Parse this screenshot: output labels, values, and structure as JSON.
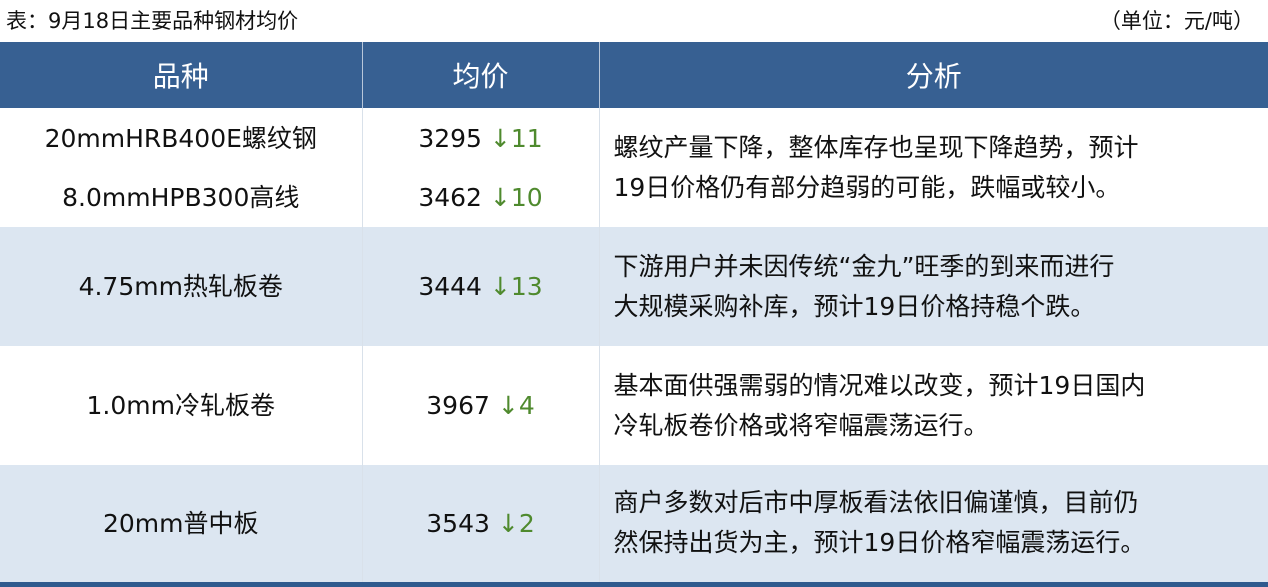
{
  "caption": "表：9月18日主要品种钢材均价",
  "unit": "（单位：元/吨）",
  "columns": [
    "品种",
    "均价",
    "分析"
  ],
  "colors": {
    "header_bg": "#376092",
    "alt_row_bg": "#dce6f1",
    "down_arrow": "#4f8a2e"
  },
  "rows": [
    {
      "items": [
        {
          "name": "20mmHRB400E螺纹钢",
          "price": "3295",
          "arrow": "↓",
          "change": "11"
        },
        {
          "name": "8.0mmHPB300高线",
          "price": "3462",
          "arrow": "↓",
          "change": "10"
        }
      ],
      "analysis": [
        "螺纹产量下降，整体库存也呈现下降趋势，预计",
        "19日价格仍有部分趋弱的可能，跌幅或较小。"
      ]
    },
    {
      "items": [
        {
          "name": "4.75mm热轧板卷",
          "price": "3444",
          "arrow": "↓",
          "change": "13"
        }
      ],
      "analysis": [
        "下游用户并未因传统“金九”旺季的到来而进行",
        "大规模采购补库，预计19日价格持稳个跌。"
      ]
    },
    {
      "items": [
        {
          "name": "1.0mm冷轧板卷",
          "price": "3967",
          "arrow": "↓",
          "change": "4"
        }
      ],
      "analysis": [
        "基本面供强需弱的情况难以改变，预计19日国内",
        "冷轧板卷价格或将窄幅震荡运行。"
      ]
    },
    {
      "items": [
        {
          "name": "20mm普中板",
          "price": "3543",
          "arrow": "↓",
          "change": "2"
        }
      ],
      "analysis": [
        "商户多数对后市中厚板看法依旧偏谨慎，目前仍",
        "然保持出货为主，预计19日价格窄幅震荡运行。"
      ]
    }
  ]
}
